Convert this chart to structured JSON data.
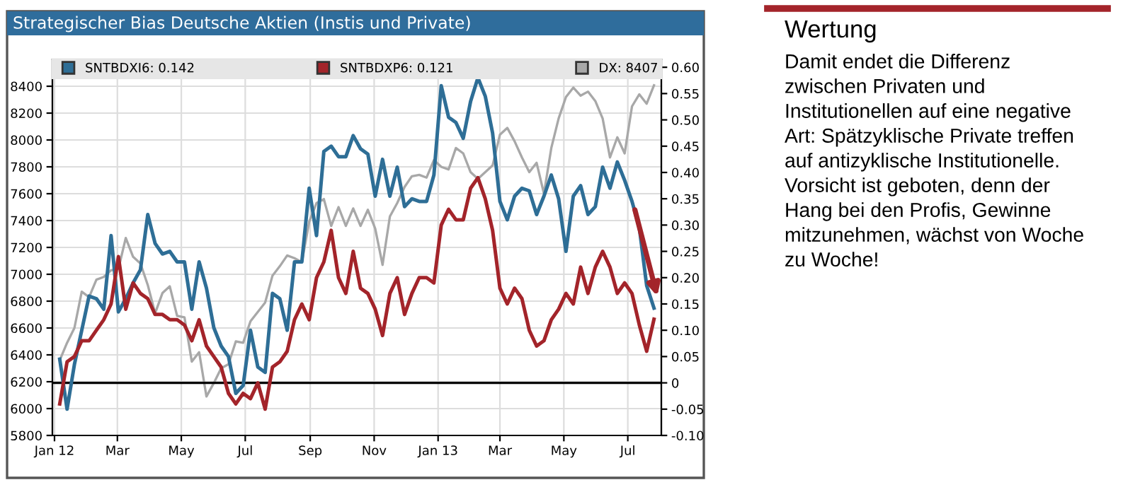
{
  "chart_data": {
    "type": "line",
    "title": "Strategischer Bias Deutsche Aktien (Instis und Private)",
    "x": [
      "2012-01-06",
      "2012-01-13",
      "2012-01-20",
      "2012-01-27",
      "2012-02-03",
      "2012-02-10",
      "2012-02-17",
      "2012-02-24",
      "2012-03-02",
      "2012-03-09",
      "2012-03-16",
      "2012-03-23",
      "2012-03-30",
      "2012-04-06",
      "2012-04-13",
      "2012-04-20",
      "2012-04-27",
      "2012-05-04",
      "2012-05-11",
      "2012-05-18",
      "2012-05-25",
      "2012-06-01",
      "2012-06-08",
      "2012-06-15",
      "2012-06-22",
      "2012-06-29",
      "2012-07-06",
      "2012-07-13",
      "2012-07-20",
      "2012-07-27",
      "2012-08-03",
      "2012-08-10",
      "2012-08-17",
      "2012-08-24",
      "2012-08-31",
      "2012-09-07",
      "2012-09-14",
      "2012-09-21",
      "2012-09-28",
      "2012-10-05",
      "2012-10-12",
      "2012-10-19",
      "2012-10-26",
      "2012-11-02",
      "2012-11-09",
      "2012-11-16",
      "2012-11-23",
      "2012-11-30",
      "2012-12-07",
      "2012-12-14",
      "2012-12-21",
      "2012-12-28",
      "2013-01-04",
      "2013-01-11",
      "2013-01-18",
      "2013-01-25",
      "2013-02-01",
      "2013-02-08",
      "2013-02-15",
      "2013-02-22",
      "2013-03-01",
      "2013-03-08",
      "2013-03-15",
      "2013-03-22",
      "2013-03-29",
      "2013-04-05",
      "2013-04-12",
      "2013-04-19",
      "2013-04-26",
      "2013-05-03",
      "2013-05-10",
      "2013-05-17",
      "2013-05-24",
      "2013-05-31",
      "2013-06-07",
      "2013-06-14",
      "2013-06-21",
      "2013-06-28",
      "2013-07-05",
      "2013-07-12",
      "2013-07-19",
      "2013-07-26"
    ],
    "series": [
      {
        "name": "SNTBDXI6: 0.142",
        "color": "#2e6e96",
        "axis": "y2",
        "values": [
          0.045,
          -0.05,
          0.035,
          0.1,
          0.165,
          0.16,
          0.14,
          0.28,
          0.135,
          0.16,
          0.19,
          0.215,
          0.32,
          0.265,
          0.245,
          0.25,
          0.23,
          0.23,
          0.14,
          0.23,
          0.18,
          0.105,
          0.07,
          0.05,
          -0.02,
          -0.005,
          0.1,
          0.03,
          0.02,
          0.17,
          0.16,
          0.1,
          0.23,
          0.23,
          0.37,
          0.28,
          0.44,
          0.45,
          0.43,
          0.43,
          0.47,
          0.445,
          0.435,
          0.355,
          0.425,
          0.355,
          0.41,
          0.335,
          0.35,
          0.345,
          0.345,
          0.395,
          0.565,
          0.505,
          0.495,
          0.465,
          0.535,
          0.58,
          0.545,
          0.475,
          0.345,
          0.31,
          0.355,
          0.37,
          0.365,
          0.32,
          0.355,
          0.395,
          0.35,
          0.25,
          0.355,
          0.375,
          0.32,
          0.335,
          0.41,
          0.37,
          0.42,
          0.385,
          0.345,
          0.295,
          0.185,
          0.142
        ]
      },
      {
        "name": "SNTBDXP6: 0.121",
        "color": "#a3242a",
        "axis": "y2",
        "values": [
          -0.04,
          0.04,
          0.05,
          0.08,
          0.08,
          0.1,
          0.12,
          0.15,
          0.24,
          0.14,
          0.19,
          0.17,
          0.16,
          0.13,
          0.13,
          0.12,
          0.12,
          0.11,
          0.08,
          0.12,
          0.07,
          0.05,
          0.03,
          -0.02,
          -0.04,
          -0.02,
          -0.03,
          0.0,
          -0.05,
          0.03,
          0.04,
          0.06,
          0.12,
          0.15,
          0.12,
          0.2,
          0.23,
          0.29,
          0.2,
          0.17,
          0.25,
          0.18,
          0.17,
          0.14,
          0.09,
          0.17,
          0.2,
          0.13,
          0.17,
          0.2,
          0.2,
          0.19,
          0.3,
          0.33,
          0.31,
          0.31,
          0.37,
          0.39,
          0.35,
          0.29,
          0.18,
          0.15,
          0.18,
          0.16,
          0.1,
          0.07,
          0.08,
          0.12,
          0.14,
          0.17,
          0.15,
          0.22,
          0.17,
          0.22,
          0.25,
          0.22,
          0.17,
          0.19,
          0.17,
          0.11,
          0.06,
          0.121
        ]
      },
      {
        "name": "DX: 8407",
        "color": "#a8a8a8",
        "values": [
          6360,
          6490,
          6600,
          6870,
          6830,
          6960,
          6980,
          7030,
          7040,
          7270,
          7130,
          7080,
          6920,
          6710,
          6860,
          6910,
          6690,
          6680,
          6350,
          6420,
          6090,
          6190,
          6300,
          6330,
          6500,
          6490,
          6650,
          6720,
          6790,
          6990,
          7060,
          7140,
          7120,
          7090,
          7390,
          7530,
          7560,
          7360,
          7500,
          7360,
          7490,
          7360,
          7480,
          7340,
          7070,
          7430,
          7530,
          7650,
          7730,
          7740,
          7720,
          7850,
          7800,
          7780,
          7940,
          7900,
          7760,
          7710,
          7760,
          7810,
          8040,
          8090,
          7990,
          7870,
          7760,
          7830,
          7600,
          7940,
          8160,
          8320,
          8390,
          8330,
          8360,
          8290,
          8160,
          7870,
          8020,
          7900,
          8250,
          8340,
          8270,
          8407
        ]
      }
    ],
    "xlim": [
      "2011-12-30",
      "2013-08-02"
    ],
    "xticks": [
      {
        "value": "2012-01-01",
        "label": "Jan 12"
      },
      {
        "value": "2012-03-01",
        "label": "Mar"
      },
      {
        "value": "2012-05-01",
        "label": "May"
      },
      {
        "value": "2012-07-01",
        "label": "Jul"
      },
      {
        "value": "2012-09-01",
        "label": "Sep"
      },
      {
        "value": "2012-11-01",
        "label": "Nov"
      },
      {
        "value": "2013-01-01",
        "label": "Jan 13"
      },
      {
        "value": "2013-03-01",
        "label": "Mar"
      },
      {
        "value": "2013-05-01",
        "label": "May"
      },
      {
        "value": "2013-07-01",
        "label": "Jul"
      }
    ],
    "ylim": [
      5800,
      8600
    ],
    "yticks": [
      5800,
      6000,
      6200,
      6400,
      6600,
      6800,
      7000,
      7200,
      7400,
      7600,
      7800,
      8000,
      8200,
      8400
    ],
    "y2lim": [
      -0.1,
      0.615
    ],
    "y2ticks": [
      {
        "value": -0.1,
        "label": "-0.10"
      },
      {
        "value": -0.05,
        "label": "-0.05"
      },
      {
        "value": 0,
        "label": "0"
      },
      {
        "value": 0.05,
        "label": "0.05"
      },
      {
        "value": 0.1,
        "label": "0.10"
      },
      {
        "value": 0.15,
        "label": "0.15"
      },
      {
        "value": 0.2,
        "label": "0.20"
      },
      {
        "value": 0.25,
        "label": "0.25"
      },
      {
        "value": 0.3,
        "label": "0.30"
      },
      {
        "value": 0.35,
        "label": "0.35"
      },
      {
        "value": 0.4,
        "label": "0.40"
      },
      {
        "value": 0.45,
        "label": "0.45"
      },
      {
        "value": 0.5,
        "label": "0.50"
      },
      {
        "value": 0.55,
        "label": "0.55"
      },
      {
        "value": 0.6,
        "label": "0.60"
      }
    ],
    "ref_lines": [
      {
        "axis": "y2",
        "value": 0,
        "color": "#000000"
      }
    ],
    "grid": true,
    "legend": "top",
    "annotations": [
      "Wertung",
      "Damit endet die Differenz zwischen Privaten und Institutionellen auf eine negative Art: Spätzyklische Private treffen auf antizyklische Institutionelle. Vorsicht ist geboten, denn der Hang bei den Profis, Gewinne mitzunehmen, wächst von Woche zu Woche!"
    ]
  }
}
